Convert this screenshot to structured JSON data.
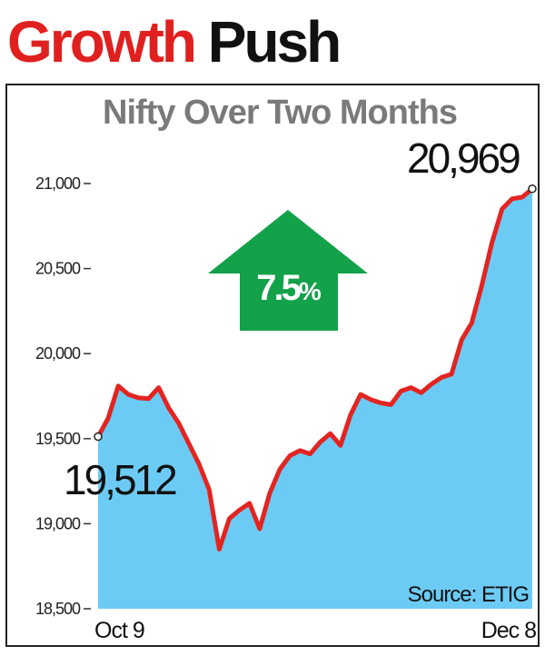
{
  "headline": {
    "word1": "Growth",
    "word2": "Push"
  },
  "colors": {
    "accent_red": "#e0201f",
    "line": "#e32421",
    "area": "#6ccbf4",
    "arrow": "#13a14a",
    "title_grey": "#7a7a7a"
  },
  "chart_data": {
    "type": "area",
    "title": "Nifty Over Two Months",
    "xlabel": "",
    "ylabel": "",
    "x_labels": [
      "Oct 9",
      "Dec 8"
    ],
    "y_ticks": [
      21000,
      20500,
      20000,
      19500,
      19000,
      18500
    ],
    "y_tick_labels": [
      "21,000",
      "20,500",
      "20,000",
      "19,500",
      "19,000",
      "18,500"
    ],
    "ylim": [
      18500,
      21000
    ],
    "grid": false,
    "series": [
      {
        "name": "Nifty",
        "values": [
          19512,
          19620,
          19810,
          19760,
          19740,
          19735,
          19800,
          19680,
          19590,
          19470,
          19350,
          19200,
          18850,
          19030,
          19080,
          19120,
          18970,
          19180,
          19320,
          19400,
          19430,
          19410,
          19480,
          19530,
          19460,
          19640,
          19760,
          19730,
          19710,
          19700,
          19780,
          19800,
          19770,
          19820,
          19860,
          19880,
          20080,
          20180,
          20400,
          20650,
          20850,
          20910,
          20920,
          20969
        ]
      }
    ],
    "annotations": {
      "start_value": "19,512",
      "end_value": "20,969",
      "change_label": "7.5",
      "change_unit": "%",
      "source": "Source: ETIG"
    }
  }
}
